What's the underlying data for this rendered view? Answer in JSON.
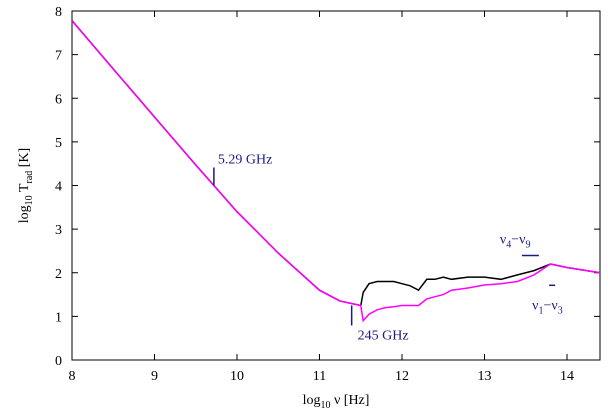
{
  "chart_data": {
    "type": "line",
    "x_label": [
      "log",
      "10",
      " ν [Hz]"
    ],
    "y_label": [
      "log",
      "10",
      " T",
      "rad",
      " [K]"
    ],
    "x": [
      8,
      8.5,
      9,
      9.5,
      9.72,
      10,
      10.5,
      11,
      11.25,
      11.5,
      11.53,
      11.6,
      11.7,
      11.8,
      11.9,
      12,
      12.1,
      12.2,
      12.3,
      12.4,
      12.5,
      12.6,
      12.8,
      13,
      13.2,
      13.4,
      13.6,
      13.8,
      14,
      14.4
    ],
    "series": [
      {
        "color": "#000000",
        "values": [
          7.78,
          6.67,
          5.57,
          4.47,
          4.0,
          3.4,
          2.45,
          1.6,
          1.35,
          1.25,
          1.55,
          1.75,
          1.8,
          1.8,
          1.8,
          1.75,
          1.7,
          1.6,
          1.85,
          1.85,
          1.9,
          1.85,
          1.9,
          1.9,
          1.85,
          1.95,
          2.05,
          2.2,
          2.12,
          2.0
        ]
      },
      {
        "color": "#ff00ff",
        "values": [
          7.78,
          6.67,
          5.57,
          4.47,
          4.0,
          3.4,
          2.45,
          1.6,
          1.35,
          1.25,
          0.9,
          1.05,
          1.15,
          1.2,
          1.22,
          1.25,
          1.25,
          1.25,
          1.4,
          1.45,
          1.5,
          1.6,
          1.65,
          1.72,
          1.75,
          1.8,
          1.95,
          2.2,
          2.12,
          2.0
        ]
      }
    ],
    "annotations": [
      {
        "parts": [
          "5.29 GHz"
        ],
        "x": 9.72,
        "y": 4.0
      },
      {
        "parts": [
          "245 GHz"
        ],
        "x": 11.39,
        "y": 1.25
      },
      {
        "parts": [
          "ν",
          "4",
          "−ν",
          "9"
        ],
        "x": 13.55,
        "y": 2.35
      },
      {
        "parts": [
          "ν",
          "1",
          "−ν",
          "3"
        ],
        "x": 13.82,
        "y": 1.85
      }
    ],
    "annotation_color": "#1a1a80",
    "xlim": [
      8,
      14.4
    ],
    "xticks": [
      8,
      9,
      10,
      11,
      12,
      13,
      14
    ],
    "ylim": [
      0,
      8
    ],
    "yticks": [
      0,
      1,
      2,
      3,
      4,
      5,
      6,
      7,
      8
    ]
  }
}
